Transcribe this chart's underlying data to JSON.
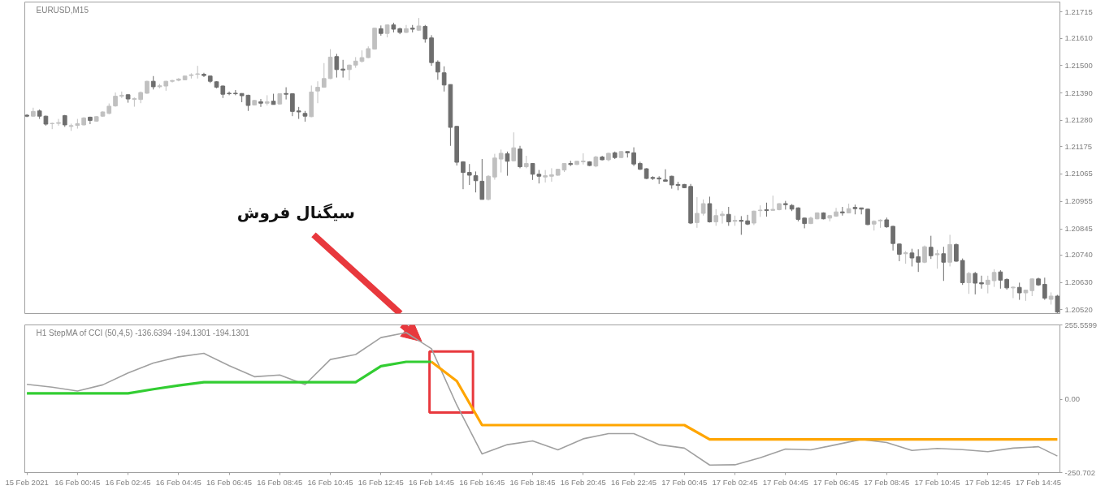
{
  "chart_data": [
    {
      "type": "candlestick",
      "title": "EURUSD,M15",
      "x": [
        "2021-02-15T22:45",
        "2021-02-15T23:00",
        "2021-02-15T23:15",
        "2021-02-15T23:30",
        "2021-02-15T23:45",
        "2021-02-16T00:00",
        "2021-02-16T00:15",
        "2021-02-16T00:30",
        "2021-02-16T00:45",
        "2021-02-16T01:00",
        "2021-02-16T01:15",
        "2021-02-16T01:30",
        "2021-02-16T01:45",
        "2021-02-16T02:00",
        "2021-02-16T02:15",
        "2021-02-16T02:30",
        "2021-02-16T02:45",
        "2021-02-16T03:00",
        "2021-02-16T03:15",
        "2021-02-16T03:30",
        "2021-02-16T03:45",
        "2021-02-16T04:00",
        "2021-02-16T04:15",
        "2021-02-16T04:30",
        "2021-02-16T04:45",
        "2021-02-16T05:00",
        "2021-02-16T05:15",
        "2021-02-16T05:30",
        "2021-02-16T05:45",
        "2021-02-16T06:00",
        "2021-02-16T06:15",
        "2021-02-16T06:30",
        "2021-02-16T06:45",
        "2021-02-16T07:00",
        "2021-02-16T07:15",
        "2021-02-16T07:30",
        "2021-02-16T07:45",
        "2021-02-16T08:00",
        "2021-02-16T08:15",
        "2021-02-16T08:30",
        "2021-02-16T08:45",
        "2021-02-16T09:00",
        "2021-02-16T09:15",
        "2021-02-16T09:30",
        "2021-02-16T09:45",
        "2021-02-16T10:00",
        "2021-02-16T10:15",
        "2021-02-16T10:30",
        "2021-02-16T10:45",
        "2021-02-16T11:00",
        "2021-02-16T11:15",
        "2021-02-16T11:30",
        "2021-02-16T11:45",
        "2021-02-16T12:00",
        "2021-02-16T12:15",
        "2021-02-16T12:30",
        "2021-02-16T12:45",
        "2021-02-16T13:00",
        "2021-02-16T13:15",
        "2021-02-16T13:30",
        "2021-02-16T13:45",
        "2021-02-16T14:00",
        "2021-02-16T14:15",
        "2021-02-16T14:30",
        "2021-02-16T14:45",
        "2021-02-16T15:00",
        "2021-02-16T15:15",
        "2021-02-16T15:30",
        "2021-02-16T15:45",
        "2021-02-16T16:00",
        "2021-02-16T16:15",
        "2021-02-16T16:30",
        "2021-02-16T16:45",
        "2021-02-16T17:00",
        "2021-02-16T17:15",
        "2021-02-16T17:30",
        "2021-02-16T17:45",
        "2021-02-16T18:00",
        "2021-02-16T18:15",
        "2021-02-16T18:30",
        "2021-02-16T18:45",
        "2021-02-16T19:00",
        "2021-02-16T19:15",
        "2021-02-16T19:30",
        "2021-02-16T19:45",
        "2021-02-16T20:00",
        "2021-02-16T20:15",
        "2021-02-16T20:30",
        "2021-02-16T20:45",
        "2021-02-16T21:00",
        "2021-02-16T21:15",
        "2021-02-16T21:30",
        "2021-02-16T21:45",
        "2021-02-16T22:00",
        "2021-02-16T22:15",
        "2021-02-16T22:30",
        "2021-02-16T22:45",
        "2021-02-16T23:00",
        "2021-02-16T23:15",
        "2021-02-16T23:30",
        "2021-02-16T23:45",
        "2021-02-17T00:00",
        "2021-02-17T00:15",
        "2021-02-17T00:30",
        "2021-02-17T00:45",
        "2021-02-17T01:00",
        "2021-02-17T01:15",
        "2021-02-17T01:30",
        "2021-02-17T01:45",
        "2021-02-17T02:00",
        "2021-02-17T02:15",
        "2021-02-17T02:30",
        "2021-02-17T02:45",
        "2021-02-17T03:00",
        "2021-02-17T03:15",
        "2021-02-17T03:30",
        "2021-02-17T03:45",
        "2021-02-17T04:00",
        "2021-02-17T04:15",
        "2021-02-17T04:30",
        "2021-02-17T04:45",
        "2021-02-17T05:00",
        "2021-02-17T05:15",
        "2021-02-17T05:30",
        "2021-02-17T05:45",
        "2021-02-17T06:00",
        "2021-02-17T06:15",
        "2021-02-17T06:30",
        "2021-02-17T06:45",
        "2021-02-17T07:00",
        "2021-02-17T07:15",
        "2021-02-17T07:30",
        "2021-02-17T07:45",
        "2021-02-17T08:00",
        "2021-02-17T08:15",
        "2021-02-17T08:30",
        "2021-02-17T08:45",
        "2021-02-17T09:00",
        "2021-02-17T09:15",
        "2021-02-17T09:30",
        "2021-02-17T09:45",
        "2021-02-17T10:00",
        "2021-02-17T10:15",
        "2021-02-17T10:30",
        "2021-02-17T10:45",
        "2021-02-17T11:00",
        "2021-02-17T11:15",
        "2021-02-17T11:30",
        "2021-02-17T11:45",
        "2021-02-17T12:00",
        "2021-02-17T12:15",
        "2021-02-17T12:30",
        "2021-02-17T12:45",
        "2021-02-17T13:00",
        "2021-02-17T13:15",
        "2021-02-17T13:30",
        "2021-02-17T13:45",
        "2021-02-17T14:00",
        "2021-02-17T14:15",
        "2021-02-17T14:30",
        "2021-02-17T14:45",
        "2021-02-17T15:00",
        "2021-02-17T15:15",
        "2021-02-17T15:30"
      ],
      "ohlc": [
        [
          1.21301,
          1.21305,
          1.21293,
          1.21297
        ],
        [
          1.21297,
          1.21331,
          1.21295,
          1.21316
        ],
        [
          1.21318,
          1.21324,
          1.21286,
          1.21297
        ],
        [
          1.21297,
          1.21299,
          1.21259,
          1.21265
        ],
        [
          1.21267,
          1.21271,
          1.21245,
          1.21268
        ],
        [
          1.21268,
          1.21286,
          1.21259,
          1.21271
        ],
        [
          1.21299,
          1.21302,
          1.21254,
          1.21262
        ],
        [
          1.21256,
          1.21267,
          1.21238,
          1.21259
        ],
        [
          1.2126,
          1.21286,
          1.21247,
          1.21267
        ],
        [
          1.21262,
          1.21293,
          1.2126,
          1.2129
        ],
        [
          1.21293,
          1.21295,
          1.21265,
          1.2128
        ],
        [
          1.21277,
          1.21297,
          1.21275,
          1.21295
        ],
        [
          1.21297,
          1.21316,
          1.21295,
          1.21314
        ],
        [
          1.21308,
          1.21348,
          1.21305,
          1.21337
        ],
        [
          1.21338,
          1.21392,
          1.21335,
          1.21377
        ],
        [
          1.21377,
          1.21396,
          1.2137,
          1.21381
        ],
        [
          1.21383,
          1.21385,
          1.21351,
          1.21366
        ],
        [
          1.21364,
          1.21372,
          1.21335,
          1.21368
        ],
        [
          1.21364,
          1.21396,
          1.21349,
          1.21392
        ],
        [
          1.21389,
          1.21439,
          1.21387,
          1.21437
        ],
        [
          1.21437,
          1.21458,
          1.21404,
          1.21415
        ],
        [
          1.21415,
          1.21426,
          1.21409,
          1.21419
        ],
        [
          1.21418,
          1.21439,
          1.21399,
          1.21437
        ],
        [
          1.21437,
          1.21443,
          1.21432,
          1.2144
        ],
        [
          1.21441,
          1.2145,
          1.21437,
          1.21446
        ],
        [
          1.21443,
          1.2146,
          1.21441,
          1.21458
        ],
        [
          1.2146,
          1.21469,
          1.21448,
          1.21463
        ],
        [
          1.21465,
          1.21499,
          1.21448,
          1.21467
        ],
        [
          1.21465,
          1.21471,
          1.21454,
          1.2146
        ],
        [
          1.21458,
          1.2146,
          1.2143,
          1.21437
        ],
        [
          1.21435,
          1.21437,
          1.21409,
          1.21413
        ],
        [
          1.21418,
          1.2142,
          1.2137,
          1.21385
        ],
        [
          1.21389,
          1.21396,
          1.21381,
          1.21387
        ],
        [
          1.21389,
          1.21402,
          1.21381,
          1.21387
        ],
        [
          1.21388,
          1.21389,
          1.21353,
          1.21379
        ],
        [
          1.21381,
          1.21383,
          1.21318,
          1.2134
        ],
        [
          1.21342,
          1.21362,
          1.2134,
          1.2136
        ],
        [
          1.21355,
          1.21366,
          1.21334,
          1.21349
        ],
        [
          1.21349,
          1.21381,
          1.2134,
          1.21355
        ],
        [
          1.21357,
          1.21387,
          1.21344,
          1.21344
        ],
        [
          1.21346,
          1.21389,
          1.21344,
          1.21387
        ],
        [
          1.21388,
          1.21413,
          1.21364,
          1.21385
        ],
        [
          1.21387,
          1.21389,
          1.21297,
          1.21316
        ],
        [
          1.21318,
          1.21334,
          1.21286,
          1.21314
        ],
        [
          1.21308,
          1.21318,
          1.21275,
          1.21297
        ],
        [
          1.21295,
          1.2142,
          1.21293,
          1.21394
        ],
        [
          1.21398,
          1.21437,
          1.21349,
          1.21413
        ],
        [
          1.21413,
          1.2151,
          1.21411,
          1.21448
        ],
        [
          1.21448,
          1.21566,
          1.21446,
          1.21534
        ],
        [
          1.21536,
          1.21547,
          1.21452,
          1.21484
        ],
        [
          1.21486,
          1.21523,
          1.21452,
          1.21482
        ],
        [
          1.21484,
          1.21504,
          1.21441,
          1.21502
        ],
        [
          1.21502,
          1.21534,
          1.21491,
          1.21518
        ],
        [
          1.21517,
          1.21561,
          1.21512,
          1.21532
        ],
        [
          1.21532,
          1.21577,
          1.2153,
          1.21568
        ],
        [
          1.21566,
          1.21652,
          1.21564,
          1.2165
        ],
        [
          1.21648,
          1.21661,
          1.2162,
          1.21629
        ],
        [
          1.21629,
          1.21665,
          1.21613,
          1.21663
        ],
        [
          1.21663,
          1.21672,
          1.21633,
          1.21646
        ],
        [
          1.21648,
          1.21652,
          1.21626,
          1.21633
        ],
        [
          1.21633,
          1.21663,
          1.21631,
          1.21648
        ],
        [
          1.2165,
          1.21663,
          1.21633,
          1.21646
        ],
        [
          1.21642,
          1.21691,
          1.21639,
          1.21659
        ],
        [
          1.21657,
          1.21663,
          1.21592,
          1.21607
        ],
        [
          1.21611,
          1.21622,
          1.21499,
          1.21512
        ],
        [
          1.21514,
          1.21521,
          1.21443,
          1.21474
        ],
        [
          1.21471,
          1.21497,
          1.21396,
          1.21422
        ],
        [
          1.21424,
          1.21424,
          1.21178,
          1.21252
        ],
        [
          1.21256,
          1.21258,
          1.21099,
          1.21112
        ],
        [
          1.21114,
          1.21116,
          1.21004,
          1.21071
        ],
        [
          1.21071,
          1.21105,
          1.21021,
          1.2106
        ],
        [
          1.21058,
          1.21075,
          1.20991,
          1.21038
        ],
        [
          1.21036,
          1.21125,
          1.20963,
          1.20963
        ],
        [
          1.20963,
          1.2106,
          1.20959,
          1.21056
        ],
        [
          1.21053,
          1.21146,
          1.21042,
          1.21129
        ],
        [
          1.21125,
          1.21163,
          1.21071,
          1.21148
        ],
        [
          1.21146,
          1.21155,
          1.21058,
          1.21116
        ],
        [
          1.21118,
          1.21232,
          1.21116,
          1.2117
        ],
        [
          1.21165,
          1.21178,
          1.21088,
          1.21094
        ],
        [
          1.21094,
          1.21138,
          1.21088,
          1.21107
        ],
        [
          1.21107,
          1.21109,
          1.21041,
          1.21064
        ],
        [
          1.21064,
          1.21081,
          1.21027,
          1.21056
        ],
        [
          1.21053,
          1.21081,
          1.21031,
          1.21058
        ],
        [
          1.21056,
          1.21088,
          1.21034,
          1.21062
        ],
        [
          1.2106,
          1.21086,
          1.21058,
          1.21084
        ],
        [
          1.21081,
          1.21109,
          1.21073,
          1.21107
        ],
        [
          1.21107,
          1.21118,
          1.21097,
          1.21103
        ],
        [
          1.21103,
          1.21118,
          1.21101,
          1.21116
        ],
        [
          1.21114,
          1.21148,
          1.21103,
          1.21117
        ],
        [
          1.21114,
          1.21116,
          1.21097,
          1.21099
        ],
        [
          1.21097,
          1.21138,
          1.21092,
          1.21133
        ],
        [
          1.21133,
          1.21138,
          1.2112,
          1.21122
        ],
        [
          1.21122,
          1.2115,
          1.21116,
          1.21148
        ],
        [
          1.2115,
          1.21155,
          1.21125,
          1.21131
        ],
        [
          1.21131,
          1.21157,
          1.21129,
          1.21155
        ],
        [
          1.21155,
          1.21155,
          1.21131,
          1.2115
        ],
        [
          1.2115,
          1.21172,
          1.21097,
          1.21105
        ],
        [
          1.21107,
          1.21114,
          1.21081,
          1.21084
        ],
        [
          1.21086,
          1.21088,
          1.21045,
          1.21047
        ],
        [
          1.21051,
          1.21056,
          1.21041,
          1.21047
        ],
        [
          1.21049,
          1.21056,
          1.21025,
          1.21045
        ],
        [
          1.21041,
          1.21084,
          1.21036,
          1.21036
        ],
        [
          1.21056,
          1.21058,
          1.21006,
          1.21021
        ],
        [
          1.21023,
          1.21034,
          1.21,
          1.21019
        ],
        [
          1.21023,
          1.21025,
          1.21008,
          1.2101
        ],
        [
          1.21015,
          1.21025,
          1.20864,
          1.20868
        ],
        [
          1.2087,
          1.20972,
          1.20849,
          1.20907
        ],
        [
          1.20907,
          1.20963,
          1.20898,
          1.20946
        ],
        [
          1.20946,
          1.20974,
          1.2087,
          1.20873
        ],
        [
          1.20873,
          1.20924,
          1.20857,
          1.20898
        ],
        [
          1.20898,
          1.20916,
          1.20866,
          1.20904
        ],
        [
          1.20903,
          1.20933,
          1.20857,
          1.20873
        ],
        [
          1.20875,
          1.20898,
          1.20857,
          1.20879
        ],
        [
          1.20879,
          1.20896,
          1.20821,
          1.20875
        ],
        [
          1.20877,
          1.20901,
          1.2086,
          1.20864
        ],
        [
          1.20868,
          1.20918,
          1.2086,
          1.20916
        ],
        [
          1.20918,
          1.20939,
          1.20893,
          1.2092
        ],
        [
          1.20922,
          1.2095,
          1.20894,
          1.20918
        ],
        [
          1.20919,
          1.20978,
          1.20918,
          1.20923
        ],
        [
          1.20922,
          1.20948,
          1.20919,
          1.20946
        ],
        [
          1.20946,
          1.20957,
          1.20922,
          1.20942
        ],
        [
          1.20939,
          1.20944,
          1.20916,
          1.20924
        ],
        [
          1.20929,
          1.20931,
          1.20875,
          1.20883
        ],
        [
          1.20888,
          1.2089,
          1.20847,
          1.20866
        ],
        [
          1.20866,
          1.20894,
          1.20864,
          1.20888
        ],
        [
          1.20885,
          1.20911,
          1.20883,
          1.20909
        ],
        [
          1.20909,
          1.20911,
          1.20883,
          1.20885
        ],
        [
          1.20888,
          1.20901,
          1.20875,
          1.20898
        ],
        [
          1.20896,
          1.20929,
          1.20893,
          1.20913
        ],
        [
          1.20913,
          1.20933,
          1.20898,
          1.20909
        ],
        [
          1.20909,
          1.20946,
          1.20907,
          1.20926
        ],
        [
          1.20931,
          1.20942,
          1.20903,
          1.20926
        ],
        [
          1.20929,
          1.20929,
          1.20903,
          1.20924
        ],
        [
          1.20924,
          1.20926,
          1.2086,
          1.20862
        ],
        [
          1.20864,
          1.20879,
          1.20838,
          1.20875
        ],
        [
          1.20877,
          1.20883,
          1.20849,
          1.2088
        ],
        [
          1.20881,
          1.2089,
          1.20849,
          1.20853
        ],
        [
          1.20855,
          1.20857,
          1.20758,
          1.20786
        ],
        [
          1.20784,
          1.20786,
          1.20715,
          1.20743
        ],
        [
          1.20745,
          1.20756,
          1.20705,
          1.20749
        ],
        [
          1.20748,
          1.20765,
          1.20694,
          1.20728
        ],
        [
          1.20733,
          1.20763,
          1.20672,
          1.20711
        ],
        [
          1.20711,
          1.20778,
          1.20707,
          1.20773
        ],
        [
          1.20771,
          1.20817,
          1.20724,
          1.20737
        ],
        [
          1.20741,
          1.20761,
          1.20685,
          1.20745
        ],
        [
          1.20745,
          1.20773,
          1.20636,
          1.20711
        ],
        [
          1.20711,
          1.20821,
          1.20694,
          1.20782
        ],
        [
          1.20782,
          1.20786,
          1.20713,
          1.20715
        ],
        [
          1.20718,
          1.20726,
          1.2062,
          1.20629
        ],
        [
          1.20629,
          1.20672,
          1.20584,
          1.20666
        ],
        [
          1.20666,
          1.20672,
          1.20582,
          1.20627
        ],
        [
          1.20629,
          1.20657,
          1.20605,
          1.20624
        ],
        [
          1.20622,
          1.20657,
          1.20586,
          1.20639
        ],
        [
          1.20637,
          1.20683,
          1.20612,
          1.2067
        ],
        [
          1.20672,
          1.20679,
          1.20605,
          1.20639
        ],
        [
          1.20642,
          1.20646,
          1.20601,
          1.20608
        ],
        [
          1.20608,
          1.20614,
          1.20567,
          1.20611
        ],
        [
          1.2061,
          1.20629,
          1.2056,
          1.20588
        ],
        [
          1.20588,
          1.20601,
          1.20556,
          1.20599
        ],
        [
          1.20597,
          1.20646,
          1.20575,
          1.20644
        ],
        [
          1.20644,
          1.20649,
          1.20616,
          1.2062
        ],
        [
          1.20622,
          1.20649,
          1.2056,
          1.20567
        ],
        [
          1.20562,
          1.2059,
          1.20541,
          1.20575
        ],
        [
          1.20575,
          1.2058,
          1.20507,
          1.20511
        ]
      ],
      "colors": [
        "#6e6e6e",
        "#c0c0c0",
        "#6e6e6e",
        "#6e6e6e",
        "#c0c0c0",
        "#c0c0c0",
        "#6e6e6e",
        "#c0c0c0",
        "#c0c0c0",
        "#c0c0c0",
        "#6e6e6e",
        "#c0c0c0",
        "#c0c0c0",
        "#c0c0c0",
        "#c0c0c0",
        "#c0c0c0",
        "#6e6e6e",
        "#c0c0c0",
        "#c0c0c0",
        "#c0c0c0",
        "#6e6e6e",
        "#c0c0c0",
        "#c0c0c0",
        "#c0c0c0",
        "#c0c0c0",
        "#c0c0c0",
        "#c0c0c0",
        "#c0c0c0",
        "#6e6e6e",
        "#6e6e6e",
        "#6e6e6e",
        "#6e6e6e",
        "#6e6e6e",
        "#6e6e6e",
        "#6e6e6e",
        "#6e6e6e",
        "#c0c0c0",
        "#6e6e6e",
        "#c0c0c0",
        "#6e6e6e",
        "#c0c0c0",
        "#6e6e6e",
        "#6e6e6e",
        "#6e6e6e",
        "#6e6e6e",
        "#c0c0c0",
        "#c0c0c0",
        "#c0c0c0",
        "#c0c0c0",
        "#6e6e6e",
        "#6e6e6e",
        "#c0c0c0",
        "#c0c0c0",
        "#c0c0c0",
        "#c0c0c0",
        "#c0c0c0",
        "#6e6e6e",
        "#c0c0c0",
        "#6e6e6e",
        "#6e6e6e",
        "#c0c0c0",
        "#6e6e6e",
        "#c0c0c0",
        "#6e6e6e",
        "#6e6e6e",
        "#6e6e6e",
        "#6e6e6e",
        "#6e6e6e",
        "#6e6e6e",
        "#6e6e6e",
        "#6e6e6e",
        "#6e6e6e",
        "#6e6e6e",
        "#c0c0c0",
        "#c0c0c0",
        "#c0c0c0",
        "#6e6e6e",
        "#c0c0c0",
        "#6e6e6e",
        "#c0c0c0",
        "#6e6e6e",
        "#6e6e6e",
        "#c0c0c0",
        "#c0c0c0",
        "#c0c0c0",
        "#c0c0c0",
        "#6e6e6e",
        "#c0c0c0",
        "#c0c0c0",
        "#6e6e6e",
        "#c0c0c0",
        "#6e6e6e",
        "#c0c0c0",
        "#6e6e6e",
        "#c0c0c0",
        "#6e6e6e",
        "#6e6e6e",
        "#6e6e6e",
        "#6e6e6e",
        "#6e6e6e",
        "#6e6e6e",
        "#6e6e6e",
        "#6e6e6e",
        "#6e6e6e",
        "#6e6e6e",
        "#6e6e6e",
        "#c0c0c0",
        "#c0c0c0",
        "#6e6e6e",
        "#c0c0c0",
        "#c0c0c0",
        "#6e6e6e",
        "#c0c0c0",
        "#6e6e6e",
        "#6e6e6e",
        "#c0c0c0",
        "#c0c0c0",
        "#6e6e6e",
        "#c0c0c0",
        "#c0c0c0",
        "#6e6e6e",
        "#6e6e6e",
        "#6e6e6e",
        "#6e6e6e",
        "#c0c0c0",
        "#c0c0c0",
        "#6e6e6e",
        "#c0c0c0",
        "#c0c0c0",
        "#6e6e6e",
        "#c0c0c0",
        "#6e6e6e",
        "#6e6e6e",
        "#6e6e6e",
        "#c0c0c0",
        "#c0c0c0",
        "#6e6e6e",
        "#6e6e6e",
        "#6e6e6e",
        "#c0c0c0",
        "#6e6e6e",
        "#6e6e6e",
        "#c0c0c0",
        "#6e6e6e",
        "#c0c0c0",
        "#6e6e6e",
        "#c0c0c0",
        "#6e6e6e",
        "#6e6e6e",
        "#c0c0c0",
        "#6e6e6e",
        "#6e6e6e",
        "#c0c0c0",
        "#c0c0c0",
        "#6e6e6e",
        "#6e6e6e",
        "#c0c0c0",
        "#6e6e6e",
        "#c0c0c0",
        "#c0c0c0",
        "#6e6e6e",
        "#6e6e6e",
        "#c0c0c0",
        "#6e6e6e"
      ],
      "xlim": [
        "2021-02-15T22:40",
        "2021-02-17T15:36"
      ],
      "ylim": [
        1.20505,
        1.21755
      ],
      "yticks": [
        {
          "value": 1.21715,
          "label": "1.21715"
        },
        {
          "value": 1.2161,
          "label": "1.21610"
        },
        {
          "value": 1.215,
          "label": "1.21500"
        },
        {
          "value": 1.2139,
          "label": "1.21390"
        },
        {
          "value": 1.2128,
          "label": "1.21280"
        },
        {
          "value": 1.21175,
          "label": "1.21175"
        },
        {
          "value": 1.21065,
          "label": "1.21065"
        },
        {
          "value": 1.20955,
          "label": "1.20955"
        },
        {
          "value": 1.20845,
          "label": "1.20845"
        },
        {
          "value": 1.2074,
          "label": "1.20740"
        },
        {
          "value": 1.2063,
          "label": "1.20630"
        },
        {
          "value": 1.2052,
          "label": "1.20520"
        }
      ],
      "tick_labels": "y",
      "annotations": [
        "سیگنال فروش"
      ]
    },
    {
      "type": "line",
      "title": "H1 StepMA of CCI (50,4,5) -136.6394 -194.1301 -194.1301",
      "series": [
        {
          "color": "#a0a0a0",
          "x": [
            "2021-02-15T22:45",
            "2021-02-15T23:45",
            "2021-02-16T00:45",
            "2021-02-16T01:45",
            "2021-02-16T02:45",
            "2021-02-16T03:45",
            "2021-02-16T04:45",
            "2021-02-16T05:45",
            "2021-02-16T06:45",
            "2021-02-16T07:45",
            "2021-02-16T08:45",
            "2021-02-16T09:45",
            "2021-02-16T10:45",
            "2021-02-16T11:45",
            "2021-02-16T12:45",
            "2021-02-16T13:45",
            "2021-02-16T14:45",
            "2021-02-16T15:45",
            "2021-02-16T16:45",
            "2021-02-16T17:45",
            "2021-02-16T18:45",
            "2021-02-16T19:45",
            "2021-02-16T20:45",
            "2021-02-16T21:45",
            "2021-02-16T22:45",
            "2021-02-16T23:45",
            "2021-02-17T00:45",
            "2021-02-17T01:45",
            "2021-02-17T02:45",
            "2021-02-17T03:45",
            "2021-02-17T04:45",
            "2021-02-17T05:45",
            "2021-02-17T06:45",
            "2021-02-17T07:45",
            "2021-02-17T08:45",
            "2021-02-17T09:45",
            "2021-02-17T10:45",
            "2021-02-17T11:45",
            "2021-02-17T12:45",
            "2021-02-17T13:45",
            "2021-02-17T14:45",
            "2021-02-17T15:30"
          ],
          "values": [
            52,
            42,
            29,
            50,
            91,
            125,
            146,
            158,
            116,
            78,
            84,
            51,
            137,
            154,
            212,
            229,
            174,
            -19,
            -187,
            -155,
            -142,
            -173,
            -135,
            -117,
            -117,
            -155,
            -167,
            -225,
            -224,
            -200,
            -170,
            -173,
            -155,
            -137,
            -148,
            -175,
            -168,
            -172,
            -179,
            -167,
            -162,
            -194
          ]
        },
        {
          "color": "#32cd32",
          "x": [
            "2021-02-15T22:45",
            "2021-02-16T02:45",
            "2021-02-16T03:45",
            "2021-02-16T04:45",
            "2021-02-16T05:45",
            "2021-02-16T11:45",
            "2021-02-16T12:45",
            "2021-02-16T13:45",
            "2021-02-16T14:45"
          ],
          "values": [
            21,
            21,
            35,
            48,
            59,
            59,
            114,
            129,
            129
          ]
        },
        {
          "color": "#ffa500",
          "x": [
            "2021-02-16T14:45",
            "2021-02-16T15:45",
            "2021-02-16T16:45",
            "2021-02-17T00:45",
            "2021-02-17T01:45",
            "2021-02-17T15:30"
          ],
          "values": [
            129,
            63,
            -88,
            -88,
            -137,
            -137
          ]
        }
      ],
      "xlim": [
        "2021-02-15T22:40",
        "2021-02-17T15:36"
      ],
      "ylim": [
        -250.702,
        255.5599
      ],
      "yticks": [
        255.5599,
        {
          "value": 0,
          "label": "0.00"
        },
        -250.702
      ],
      "xticks": [
        {
          "value": "2021-02-15T22:45",
          "label": "15 Feb 2021"
        },
        {
          "value": "2021-02-16T00:45",
          "label": "16 Feb 00:45"
        },
        {
          "value": "2021-02-16T02:45",
          "label": "16 Feb 02:45"
        },
        {
          "value": "2021-02-16T04:45",
          "label": "16 Feb 04:45"
        },
        {
          "value": "2021-02-16T06:45",
          "label": "16 Feb 06:45"
        },
        {
          "value": "2021-02-16T08:45",
          "label": "16 Feb 08:45"
        },
        {
          "value": "2021-02-16T10:45",
          "label": "16 Feb 10:45"
        },
        {
          "value": "2021-02-16T12:45",
          "label": "16 Feb 12:45"
        },
        {
          "value": "2021-02-16T14:45",
          "label": "16 Feb 14:45"
        },
        {
          "value": "2021-02-16T16:45",
          "label": "16 Feb 16:45"
        },
        {
          "value": "2021-02-16T18:45",
          "label": "16 Feb 18:45"
        },
        {
          "value": "2021-02-16T20:45",
          "label": "16 Feb 20:45"
        },
        {
          "value": "2021-02-16T22:45",
          "label": "16 Feb 22:45"
        },
        {
          "value": "2021-02-17T00:45",
          "label": "17 Feb 00:45"
        },
        {
          "value": "2021-02-17T02:45",
          "label": "17 Feb 02:45"
        },
        {
          "value": "2021-02-17T04:45",
          "label": "17 Feb 04:45"
        },
        {
          "value": "2021-02-17T06:45",
          "label": "17 Feb 06:45"
        },
        {
          "value": "2021-02-17T08:45",
          "label": "17 Feb 08:45"
        },
        {
          "value": "2021-02-17T10:45",
          "label": "17 Feb 10:45"
        },
        {
          "value": "2021-02-17T12:45",
          "label": "17 Feb 12:45"
        },
        {
          "value": "2021-02-17T14:45",
          "label": "17 Feb 14:45"
        }
      ]
    }
  ]
}
